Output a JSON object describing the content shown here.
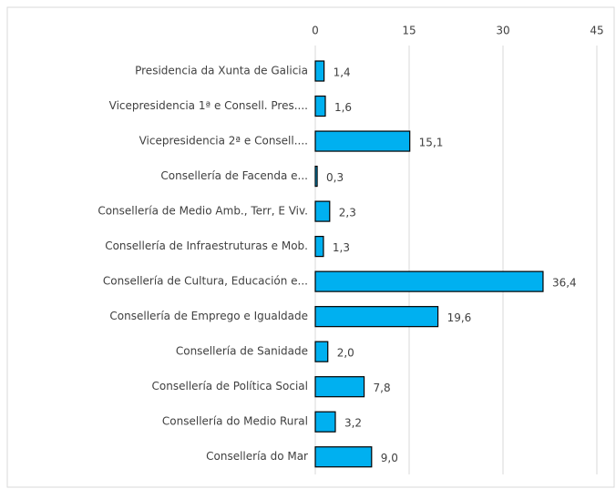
{
  "chart_data": {
    "type": "bar",
    "orientation": "horizontal",
    "categories": [
      "Presidencia da Xunta de Galicia",
      "Vicepresidencia 1ª e Consell. Pres....",
      "Vicepresidencia 2ª e Consell....",
      "Consellería de Facenda e...",
      "Consellería de Medio Amb., Terr, E Viv.",
      "Consellería de Infraestruturas e Mob.",
      "Consellería de Cultura, Educación e...",
      "Consellería de Emprego e Igualdade",
      "Consellería de Sanidade",
      "Consellería de Política Social",
      "Consellería do Medio Rural",
      "Consellería do Mar"
    ],
    "values": [
      1.4,
      1.6,
      15.1,
      0.3,
      2.3,
      1.3,
      36.4,
      19.6,
      2.0,
      7.8,
      3.2,
      9.0
    ],
    "value_labels": [
      "1,4",
      "1,6",
      "15,1",
      "0,3",
      "2,3",
      "1,3",
      "36,4",
      "19,6",
      "2,0",
      "7,8",
      "3,2",
      "9,0"
    ],
    "color": "#00b0f0",
    "xlim": [
      0,
      45
    ],
    "xticks": [
      0,
      15,
      30,
      45
    ],
    "grid": true
  }
}
